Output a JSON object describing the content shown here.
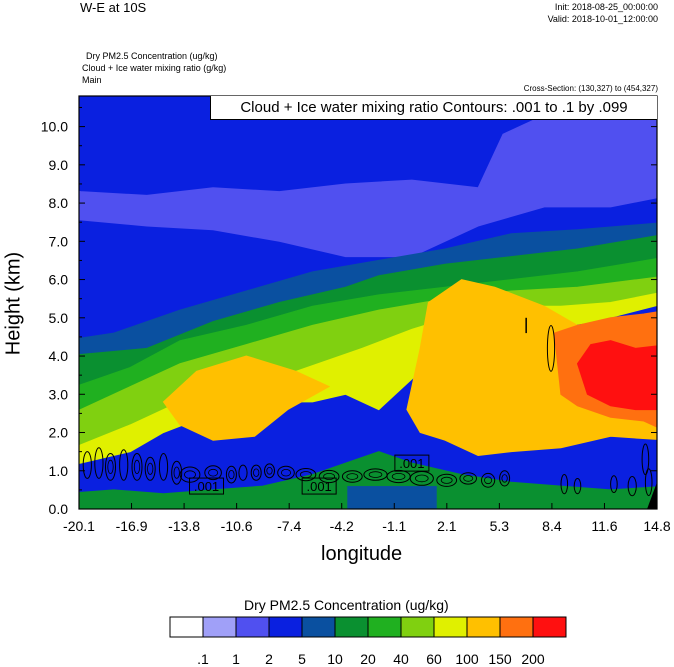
{
  "header": {
    "title": "W-E at 10S",
    "init": "Init: 2018-08-25_00:00:00",
    "valid": "Valid: 2018-10-01_12:00:00",
    "field_line1": "Dry PM2.5 Concentration   (ug/kg)",
    "field_line2": "Cloud + Ice water mixing ratio   (g/kg)",
    "field_line3": "Main",
    "cross_section": "Cross-Section: (130,327) to (454,327)"
  },
  "chart_data": {
    "type": "heatmap",
    "contour_label_box": "Cloud + Ice water mixing ratio Contours: .001 to .1 by .099",
    "xlabel": "longitude",
    "ylabel": "Height (km)",
    "xlim": [
      -20.1,
      14.8
    ],
    "ylim": [
      0.0,
      10.8
    ],
    "x_ticks": [
      "-20.1",
      "-16.9",
      "-13.8",
      "-10.6",
      "-7.4",
      "-4.2",
      "-1.1",
      "2.1",
      "5.3",
      "8.4",
      "11.6",
      "14.8"
    ],
    "y_ticks": [
      "0.0",
      "1.0",
      "2.0",
      "3.0",
      "4.0",
      "5.0",
      "6.0",
      "7.0",
      "8.0",
      "9.0",
      "10.0"
    ],
    "contour_labels": [
      {
        "text": ".001",
        "x": -12.4,
        "y": 0.6
      },
      {
        "text": ".001",
        "x": -5.6,
        "y": 0.6
      },
      {
        "text": ".001",
        "x": 0.0,
        "y": 1.2
      }
    ],
    "colorbar": {
      "title": "Dry PM2.5 Concentration  (ug/kg)",
      "labels": [
        ".1",
        "1",
        "2",
        "5",
        "10",
        "20",
        "40",
        "60",
        "100",
        "150",
        "200"
      ],
      "colors": [
        "#ffffff",
        "#a0a0f8",
        "#5050f0",
        "#0a20e0",
        "#0a50a0",
        "#0a9030",
        "#20b020",
        "#80d010",
        "#e0f000",
        "#ffc000",
        "#ff7010",
        "#ff1010"
      ]
    }
  }
}
